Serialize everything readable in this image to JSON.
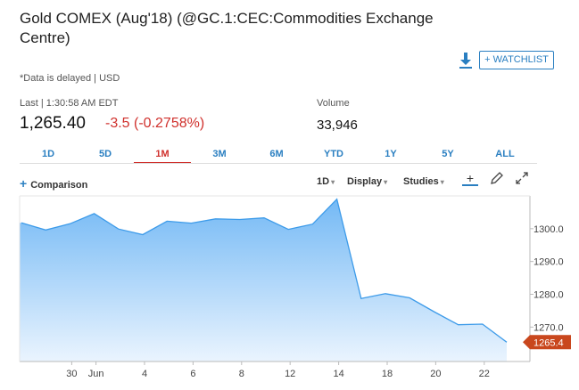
{
  "header": {
    "title": "Gold COMEX (Aug'18) (@GC.1:CEC:Commodities Exchange Centre)",
    "watchlist_label": "+ WATCHLIST",
    "delay_note": "*Data is delayed | USD",
    "last_label": "Last | 1:30:58 AM EDT",
    "last_price": "1,265.40",
    "change": "-3.5 (-0.2758%)",
    "volume_label": "Volume",
    "volume_value": "33,946"
  },
  "tabs": [
    "1D",
    "5D",
    "1M",
    "3M",
    "6M",
    "YTD",
    "1Y",
    "5Y",
    "ALL"
  ],
  "active_tab": "1M",
  "controls": {
    "comparison_label": "Comparison",
    "interval_label": "1D",
    "display_label": "Display",
    "studies_label": "Studies"
  },
  "icons": [
    "download-icon",
    "crosshair-icon",
    "draw-pencil-icon",
    "expand-icon"
  ],
  "colors": {
    "accent": "#2a7fc1",
    "negative": "#d0312d",
    "area_fill_top": "#74b9f5",
    "area_fill_bottom": "#eaf4fe",
    "line": "#3d9be9",
    "price_tag": "#c9471d"
  },
  "chart_data": {
    "type": "area",
    "x_tick_labels": [
      "30",
      "Jun",
      "4",
      "6",
      "8",
      "12",
      "14",
      "18",
      "20",
      "22"
    ],
    "y_tick_labels": [
      "1300.0",
      "1290.0",
      "1280.0",
      "1270.0"
    ],
    "y_ticks": [
      1300,
      1290,
      1280,
      1270
    ],
    "ylim": [
      1259.5,
      1310
    ],
    "x": [
      "May 28",
      "May 29",
      "May 30",
      "May 31",
      "Jun 1",
      "Jun 4",
      "Jun 5",
      "Jun 6",
      "Jun 7",
      "Jun 8",
      "Jun 11",
      "Jun 12",
      "Jun 13",
      "Jun 14",
      "Jun 15",
      "Jun 18",
      "Jun 19",
      "Jun 20",
      "Jun 21",
      "Jun 22",
      "Jun 25"
    ],
    "values": [
      1301.8,
      1299.6,
      1301.5,
      1304.6,
      1299.9,
      1298.2,
      1302.3,
      1301.7,
      1303.0,
      1302.8,
      1303.3,
      1299.8,
      1301.4,
      1309.0,
      1278.7,
      1280.2,
      1278.9,
      1274.7,
      1270.7,
      1270.9,
      1265.4
    ],
    "last_value_label": "1265.4",
    "grid": false,
    "legend": "none"
  }
}
